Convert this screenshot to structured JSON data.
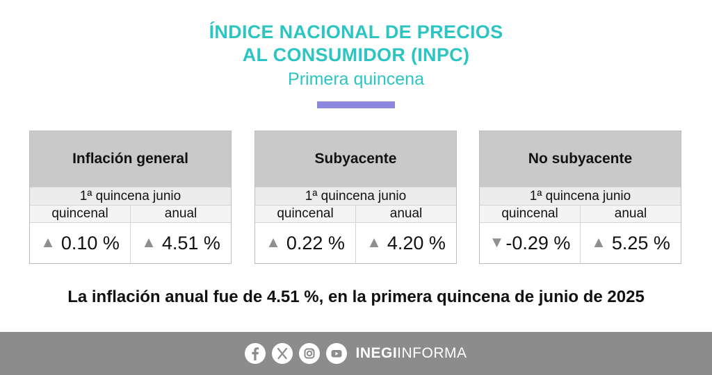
{
  "header": {
    "title_line1": "ÍNDICE NACIONAL DE PRECIOS",
    "title_line2": "AL CONSUMIDOR (INPC)",
    "subtitle": "Primera quincena"
  },
  "colors": {
    "title": "#2cc5c2",
    "accent_bar": "#8c88e0",
    "card_header": "#c9c9c9",
    "arrow": "#8f8f8f",
    "footer": "#8c8c8c"
  },
  "cards": [
    {
      "title": "Inflación general",
      "period": "1ª quincena junio",
      "col1_label": "quincenal",
      "col2_label": "anual",
      "col1_arrow": "▲",
      "col1_value": " 0.10 %",
      "col2_arrow": "▲",
      "col2_value": " 4.51 %"
    },
    {
      "title": "Subyacente",
      "period": "1ª quincena junio",
      "col1_label": "quincenal",
      "col2_label": "anual",
      "col1_arrow": "▲",
      "col1_value": " 0.22 %",
      "col2_arrow": "▲",
      "col2_value": " 4.20 %"
    },
    {
      "title": "No subyacente",
      "period": "1ª quincena junio",
      "col1_label": "quincenal",
      "col2_label": "anual",
      "col1_arrow": "▼",
      "col1_value": "-0.29 %",
      "col2_arrow": "▲",
      "col2_value": " 5.25 %"
    }
  ],
  "statement": "La inflación anual fue de 4.51 %, en la primera quincena de junio de 2025",
  "footer": {
    "icons": [
      "facebook-icon",
      "x-icon",
      "instagram-icon",
      "youtube-icon"
    ],
    "brand_bold": "INEGI",
    "brand_regular": "INFORMA"
  }
}
